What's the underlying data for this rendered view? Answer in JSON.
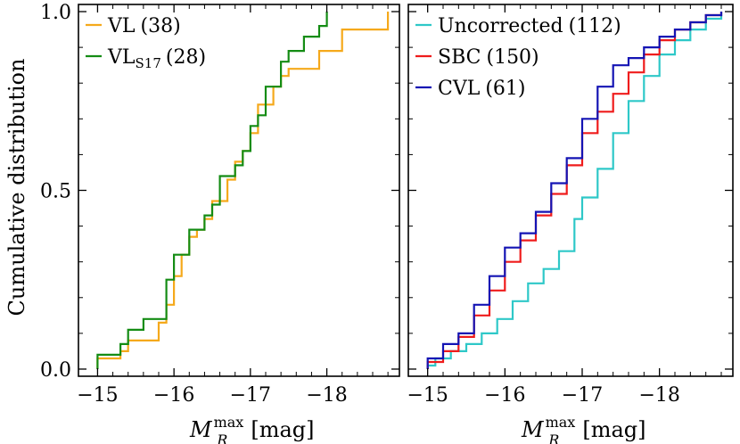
{
  "chart_data": [
    {
      "type": "line",
      "step": true,
      "title": "",
      "xlabel": "M_R^max [mag]",
      "xlabel_main": "M",
      "xlabel_sub": "R",
      "xlabel_sup": "max",
      "xlabel_unit": "[mag]",
      "ylabel": "Cumulative distribution",
      "xlim": [
        -14.75,
        -18.95
      ],
      "ylim": [
        -0.02,
        1.02
      ],
      "xticks": [
        -15,
        -16,
        -17,
        -18
      ],
      "xtick_labels": [
        "−15",
        "−16",
        "−17",
        "−18"
      ],
      "yticks": [
        0.0,
        0.5,
        1.0
      ],
      "ytick_labels": [
        "0.0",
        "0.5",
        "1.0"
      ],
      "legend_position": "top-left",
      "series": [
        {
          "name": "VL",
          "count": "(38)",
          "color": "#f5a91b",
          "x": [
            -15.0,
            -15.0,
            -15.3,
            -15.4,
            -15.8,
            -15.9,
            -16.0,
            -16.1,
            -16.2,
            -16.3,
            -16.4,
            -16.5,
            -16.7,
            -16.8,
            -16.9,
            -17.0,
            -17.1,
            -17.3,
            -17.4,
            -17.5,
            -17.9,
            -18.2,
            -18.8,
            -18.8
          ],
          "y": [
            0.0,
            0.03,
            0.05,
            0.08,
            0.13,
            0.18,
            0.26,
            0.32,
            0.37,
            0.39,
            0.42,
            0.47,
            0.53,
            0.58,
            0.61,
            0.66,
            0.74,
            0.79,
            0.82,
            0.84,
            0.89,
            0.95,
            0.97,
            1.0
          ]
        },
        {
          "name": "VL",
          "sub": "S17",
          "count": "(28)",
          "color": "#148c14",
          "x": [
            -15.0,
            -15.3,
            -15.4,
            -15.6,
            -15.9,
            -16.0,
            -16.2,
            -16.4,
            -16.5,
            -16.6,
            -16.8,
            -16.9,
            -17.0,
            -17.1,
            -17.2,
            -17.4,
            -17.5,
            -17.7,
            -17.9,
            -18.0
          ],
          "y": [
            0.04,
            0.07,
            0.11,
            0.14,
            0.25,
            0.32,
            0.39,
            0.43,
            0.46,
            0.54,
            0.57,
            0.61,
            0.68,
            0.71,
            0.79,
            0.86,
            0.89,
            0.93,
            0.96,
            1.0
          ]
        }
      ]
    },
    {
      "type": "line",
      "step": true,
      "title": "",
      "xlabel": "M_R^max [mag]",
      "xlabel_main": "M",
      "xlabel_sub": "R",
      "xlabel_sup": "max",
      "xlabel_unit": "[mag]",
      "xlim": [
        -14.75,
        -18.95
      ],
      "ylim": [
        -0.02,
        1.02
      ],
      "xticks": [
        -15,
        -16,
        -17,
        -18
      ],
      "xtick_labels": [
        "−15",
        "−16",
        "−17",
        "−18"
      ],
      "yticks": [
        0.0,
        0.5,
        1.0
      ],
      "legend_position": "top-left",
      "series": [
        {
          "name": "Uncorrected",
          "count": "(112)",
          "color": "#2ec8c8",
          "x": [
            -15.0,
            -15.1,
            -15.3,
            -15.5,
            -15.7,
            -15.9,
            -16.1,
            -16.3,
            -16.5,
            -16.7,
            -16.9,
            -17.0,
            -17.2,
            -17.4,
            -17.6,
            -17.8,
            -18.0,
            -18.2,
            -18.4,
            -18.6,
            -18.8
          ],
          "y": [
            0.01,
            0.03,
            0.05,
            0.07,
            0.1,
            0.14,
            0.19,
            0.24,
            0.28,
            0.33,
            0.42,
            0.48,
            0.56,
            0.66,
            0.75,
            0.82,
            0.88,
            0.92,
            0.95,
            0.98,
            1.0
          ]
        },
        {
          "name": "SBC",
          "count": "(150)",
          "color": "#ef1c1c",
          "x": [
            -15.0,
            -15.2,
            -15.4,
            -15.6,
            -15.8,
            -16.0,
            -16.2,
            -16.4,
            -16.6,
            -16.8,
            -17.0,
            -17.2,
            -17.4,
            -17.6,
            -17.8,
            -18.0,
            -18.2,
            -18.4,
            -18.6,
            -18.8
          ],
          "y": [
            0.02,
            0.05,
            0.09,
            0.15,
            0.22,
            0.3,
            0.36,
            0.43,
            0.49,
            0.57,
            0.66,
            0.72,
            0.77,
            0.83,
            0.88,
            0.92,
            0.95,
            0.97,
            0.99,
            1.0
          ]
        },
        {
          "name": "CVL",
          "count": "(61)",
          "color": "#1414b4",
          "x": [
            -15.0,
            -15.2,
            -15.4,
            -15.6,
            -15.8,
            -16.0,
            -16.2,
            -16.4,
            -16.6,
            -16.8,
            -17.0,
            -17.2,
            -17.4,
            -17.6,
            -17.8,
            -18.0,
            -18.2,
            -18.4,
            -18.6,
            -18.8
          ],
          "y": [
            0.03,
            0.07,
            0.1,
            0.18,
            0.26,
            0.34,
            0.38,
            0.44,
            0.52,
            0.59,
            0.7,
            0.79,
            0.85,
            0.87,
            0.9,
            0.93,
            0.95,
            0.97,
            0.99,
            1.0
          ]
        }
      ]
    }
  ]
}
